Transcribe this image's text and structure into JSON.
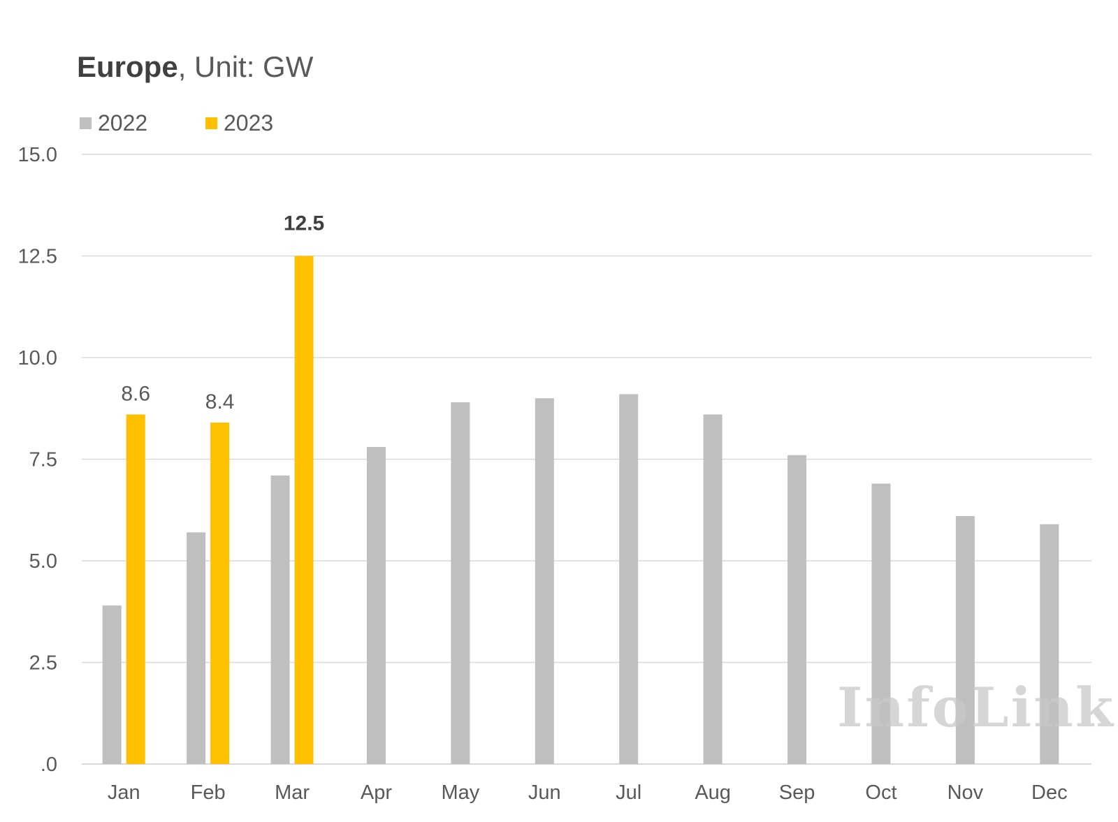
{
  "title": {
    "bold": "Europe",
    "rest": ", Unit: GW"
  },
  "watermark": "InfoLink",
  "colors": {
    "series_2022": "#BFBFBF",
    "series_2023": "#FFC000",
    "grid": "#D9D9D9",
    "text": "#595959"
  },
  "chart_data": {
    "type": "bar",
    "ylim": [
      0,
      15
    ],
    "yticks": [
      0,
      2.5,
      5,
      7.5,
      10,
      12.5,
      15
    ],
    "ytick_labels": [
      ".0",
      "2.5",
      "5.0",
      "7.5",
      "10.0",
      "12.5",
      "15.0"
    ],
    "grid": true,
    "legend": "top-left",
    "categories": [
      "Jan",
      "Feb",
      "Mar",
      "Apr",
      "May",
      "Jun",
      "Jul",
      "Aug",
      "Sep",
      "Oct",
      "Nov",
      "Dec"
    ],
    "series": [
      {
        "name": "2022",
        "values": [
          3.9,
          5.7,
          7.1,
          7.8,
          8.9,
          9.0,
          9.1,
          8.6,
          7.6,
          6.9,
          6.1,
          5.9
        ]
      },
      {
        "name": "2023",
        "values": [
          8.6,
          8.4,
          12.5,
          null,
          null,
          null,
          null,
          null,
          null,
          null,
          null,
          null
        ],
        "data_labels": [
          "8.6",
          "8.4",
          "12.5"
        ]
      }
    ]
  }
}
